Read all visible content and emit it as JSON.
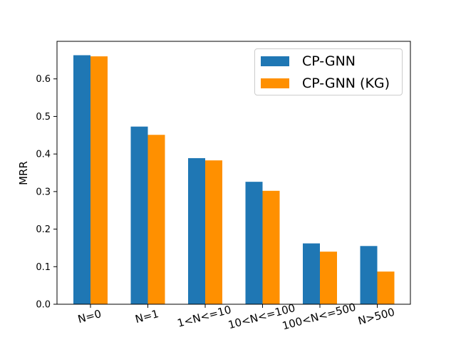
{
  "chart_data": {
    "type": "bar",
    "title": "",
    "xlabel": "",
    "ylabel": "MRR",
    "ylim": [
      0,
      0.7
    ],
    "yticks": [
      "0.0",
      "0.1",
      "0.2",
      "0.3",
      "0.4",
      "0.5",
      "0.6"
    ],
    "categories": [
      "N=0",
      "N=1",
      "1<N<=10",
      "10<N<=100",
      "100<N<=500",
      "N>500"
    ],
    "series": [
      {
        "name": "CP-GNN",
        "color": "#1f77b4",
        "values": [
          0.663,
          0.473,
          0.389,
          0.326,
          0.162,
          0.155
        ]
      },
      {
        "name": "CP-GNN (KG)",
        "color": "#ff9000",
        "values": [
          0.66,
          0.451,
          0.383,
          0.302,
          0.14,
          0.087
        ]
      }
    ],
    "legend_position": "top-right",
    "grid": false
  }
}
